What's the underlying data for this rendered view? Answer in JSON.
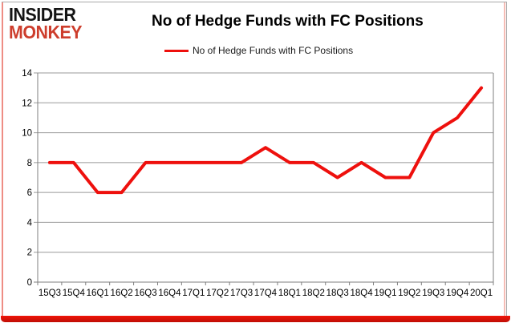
{
  "logo": {
    "line1": "INSIDER",
    "line2": "MONKEY"
  },
  "header": {
    "title": "No of Hedge Funds with FC Positions"
  },
  "legend": {
    "label": "No of Hedge Funds with FC Positions"
  },
  "colors": {
    "line_red": "#ee100d",
    "logo_black": "#141414",
    "logo_red": "#cd3d2c",
    "gridline_gray": "#999999",
    "axis_gray": "#7f7f7f",
    "tick_label": "#000000",
    "frame_pink_left": "#ee8d84",
    "frame_pink_right": "#f6bdb6",
    "frame_bottom_red": "#e8130b",
    "border_gray": "#a9a9a9"
  },
  "chart_data": {
    "type": "line",
    "title": "No of Hedge Funds with FC Positions",
    "series_name": "No of Hedge Funds with FC Positions",
    "categories": [
      "15Q3",
      "15Q4",
      "16Q1",
      "16Q2",
      "16Q3",
      "16Q4",
      "17Q1",
      "17Q2",
      "17Q3",
      "17Q4",
      "18Q1",
      "18Q2",
      "18Q3",
      "18Q4",
      "19Q1",
      "19Q2",
      "19Q3",
      "19Q4",
      "20Q1"
    ],
    "values": [
      8,
      8,
      6,
      6,
      8,
      8,
      8,
      8,
      8,
      9,
      8,
      8,
      7,
      8,
      7,
      7,
      10,
      11,
      13
    ],
    "xlabel": "",
    "ylabel": "",
    "ylim": [
      0,
      14
    ],
    "yticks": [
      0,
      2,
      4,
      6,
      8,
      10,
      12,
      14
    ],
    "grid": true,
    "legend_position": "top-center",
    "line_color": "#ee100d",
    "line_width": 4
  }
}
